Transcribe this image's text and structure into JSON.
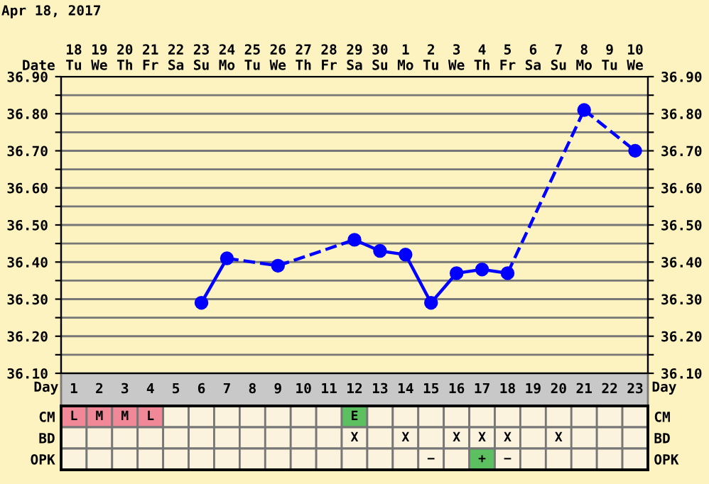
{
  "chart_data": [
    {
      "type": "line",
      "title": "Apr 18, 2017",
      "xlabel": "Date",
      "categories": [
        "18\nTu",
        "19\nWe",
        "20\nTh",
        "21\nFr",
        "22\nSa",
        "23\nSu",
        "24\nMo",
        "25\nTu",
        "26\nWe",
        "27\nTh",
        "28\nFr",
        "29\nSa",
        "30\nSu",
        "1\nMo",
        "2\nTu",
        "3\nWe",
        "4\nTh",
        "5\nFr",
        "6\nSa",
        "7\nSu",
        "8\nMo",
        "9\nTu",
        "10\nWe"
      ],
      "series": [
        {
          "color": "#0000ff",
          "values": [
            null,
            null,
            null,
            null,
            null,
            36.29,
            36.41,
            null,
            36.39,
            null,
            null,
            36.46,
            36.43,
            36.42,
            36.29,
            36.37,
            36.38,
            36.37,
            null,
            null,
            36.81,
            null,
            36.7
          ]
        }
      ],
      "marker": "circle",
      "grid": true,
      "ylim": [
        36.1,
        36.9
      ],
      "yticks": [
        {
          "value": 36.1,
          "label": "36.10"
        },
        {
          "value": 36.15,
          "label": null
        },
        {
          "value": 36.2,
          "label": "36.20"
        },
        {
          "value": 36.25,
          "label": null
        },
        {
          "value": 36.3,
          "label": "36.30"
        },
        {
          "value": 36.35,
          "label": null
        },
        {
          "value": 36.4,
          "label": "36.40"
        },
        {
          "value": 36.45,
          "label": null
        },
        {
          "value": 36.5,
          "label": "36.50"
        },
        {
          "value": 36.55,
          "label": null
        },
        {
          "value": 36.6,
          "label": "36.60"
        },
        {
          "value": 36.65,
          "label": null
        },
        {
          "value": 36.7,
          "label": "36.70"
        },
        {
          "value": 36.75,
          "label": null
        },
        {
          "value": 36.8,
          "label": "36.80"
        },
        {
          "value": 36.85,
          "label": null
        },
        {
          "value": 36.9,
          "label": "36.90"
        }
      ],
      "y2lim": [
        36.1,
        36.9
      ],
      "y2ticks": [
        {
          "value": 36.1,
          "label": "36.10"
        },
        {
          "value": 36.15,
          "label": null
        },
        {
          "value": 36.2,
          "label": "36.20"
        },
        {
          "value": 36.25,
          "label": null
        },
        {
          "value": 36.3,
          "label": "36.30"
        },
        {
          "value": 36.35,
          "label": null
        },
        {
          "value": 36.4,
          "label": "36.40"
        },
        {
          "value": 36.45,
          "label": null
        },
        {
          "value": 36.5,
          "label": "36.50"
        },
        {
          "value": 36.55,
          "label": null
        },
        {
          "value": 36.6,
          "label": "36.60"
        },
        {
          "value": 36.65,
          "label": null
        },
        {
          "value": 36.7,
          "label": "36.70"
        },
        {
          "value": 36.75,
          "label": null
        },
        {
          "value": 36.8,
          "label": "36.80"
        },
        {
          "value": 36.85,
          "label": null
        },
        {
          "value": 36.9,
          "label": "36.90"
        }
      ]
    },
    {
      "type": "heatmap",
      "xlabel": "Day",
      "categories": [
        "1",
        "2",
        "3",
        "4",
        "5",
        "6",
        "7",
        "8",
        "9",
        "10",
        "11",
        "12",
        "13",
        "14",
        "15",
        "16",
        "17",
        "18",
        "19",
        "20",
        "21",
        "22",
        "23"
      ],
      "y_categories": [
        "CM",
        "BD",
        "OPK"
      ],
      "y2_categories": [
        "CM",
        "BD",
        "OPK"
      ],
      "cells": [
        [
          null,
          null,
          null,
          null,
          null,
          null,
          null,
          null,
          null,
          null,
          null,
          null,
          null,
          null,
          null,
          null,
          null,
          null,
          null,
          null,
          null,
          null,
          null
        ],
        [
          null,
          null,
          null,
          null,
          null,
          null,
          null,
          null,
          null,
          null,
          null,
          null,
          null,
          null,
          null,
          null,
          null,
          null,
          null,
          null,
          null,
          null,
          null
        ],
        [
          null,
          null,
          null,
          null,
          null,
          null,
          null,
          null,
          null,
          null,
          null,
          null,
          null,
          null,
          null,
          null,
          null,
          null,
          null,
          null,
          null,
          null,
          null
        ]
      ],
      "cell_labels": [
        [
          "L",
          "M",
          "M",
          "L",
          null,
          null,
          null,
          null,
          null,
          null,
          null,
          "E",
          null,
          null,
          null,
          null,
          null,
          null,
          null,
          null,
          null,
          null,
          null
        ],
        [
          null,
          null,
          null,
          null,
          null,
          null,
          null,
          null,
          null,
          null,
          null,
          "X",
          null,
          "X",
          null,
          "X",
          "X",
          "X",
          null,
          "X",
          null,
          null,
          null
        ],
        [
          null,
          null,
          null,
          null,
          null,
          null,
          null,
          null,
          null,
          null,
          null,
          null,
          null,
          null,
          "−",
          null,
          "+",
          "−",
          null,
          null,
          null,
          null,
          null
        ]
      ],
      "colors": [
        [
          "#f08898",
          "#f08898",
          "#f08898",
          "#f08898",
          null,
          null,
          null,
          null,
          null,
          null,
          null,
          "#5cc060",
          null,
          null,
          null,
          null,
          null,
          null,
          null,
          null,
          null,
          null,
          null
        ],
        [
          null,
          null,
          null,
          null,
          null,
          null,
          null,
          null,
          null,
          null,
          null,
          null,
          null,
          null,
          null,
          null,
          null,
          null,
          null,
          null,
          null,
          null,
          null
        ],
        [
          null,
          null,
          null,
          null,
          null,
          null,
          null,
          null,
          null,
          null,
          null,
          null,
          null,
          null,
          null,
          null,
          "#5cc060",
          null,
          null,
          null,
          null,
          null,
          null
        ]
      ]
    }
  ]
}
